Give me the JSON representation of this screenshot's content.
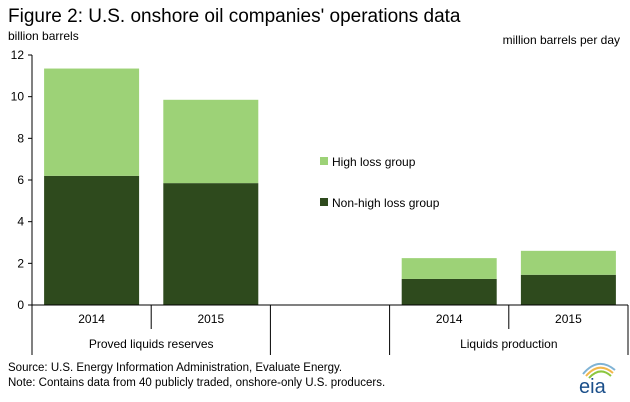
{
  "chart_data": {
    "type": "bar",
    "stacked": true,
    "title": "Figure 2: U.S. onshore oil companies' operations data",
    "left_axis_label": "billion barrels",
    "right_axis_label": "million barrels per day",
    "ylim": [
      0,
      12
    ],
    "yticks": [
      0,
      2,
      4,
      6,
      8,
      10,
      12
    ],
    "grid": false,
    "legend_position": "center",
    "groups": [
      {
        "name": "Proved liquids reserves",
        "axis": "left",
        "categories": [
          "2014",
          "2015"
        ],
        "series": [
          {
            "name": "Non-high loss group",
            "values": [
              6.2,
              5.85
            ]
          },
          {
            "name": "High loss group",
            "values": [
              5.15,
              4.0
            ]
          }
        ]
      },
      {
        "name": "Liquids production",
        "axis": "right",
        "categories": [
          "2014",
          "2015"
        ],
        "series": [
          {
            "name": "Non-high loss group",
            "values": [
              1.25,
              1.45
            ]
          },
          {
            "name": "High loss group",
            "values": [
              1.0,
              1.15
            ]
          }
        ]
      }
    ],
    "legend": [
      {
        "label": "High loss group",
        "color": "#9dd277"
      },
      {
        "label": "Non-high loss group",
        "color": "#2e4a1d"
      }
    ],
    "colors": {
      "high_loss": "#9dd277",
      "non_high_loss": "#2e4a1d"
    }
  },
  "footer": {
    "source": "Source: U.S. Energy Information Administration, Evaluate Energy.",
    "note": "Note: Contains data from 40 publicly traded, onshore-only U.S. producers."
  },
  "logo": {
    "text": "eia"
  }
}
